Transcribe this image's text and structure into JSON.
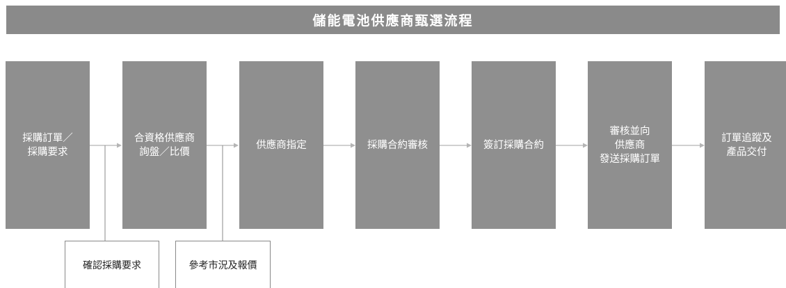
{
  "title": "儲能電池供應商甄選流程",
  "steps": [
    {
      "label": "採購訂單／\n採購要求"
    },
    {
      "label": "合資格供應商\n詢盤／比價"
    },
    {
      "label": "供應商指定"
    },
    {
      "label": "採購合約審核"
    },
    {
      "label": "簽訂採購合約"
    },
    {
      "label": "審核並向\n供應商\n發送採購訂單"
    },
    {
      "label": "訂單追蹤及\n產品交付"
    }
  ],
  "notes": [
    {
      "label": "確認採購要求"
    },
    {
      "label": "參考市況及報價"
    }
  ],
  "colors": {
    "title_bar": "#8a8a8a",
    "step_box": "#8f8f8f",
    "connector": "#b5b5b5",
    "note_border": "#888888"
  }
}
